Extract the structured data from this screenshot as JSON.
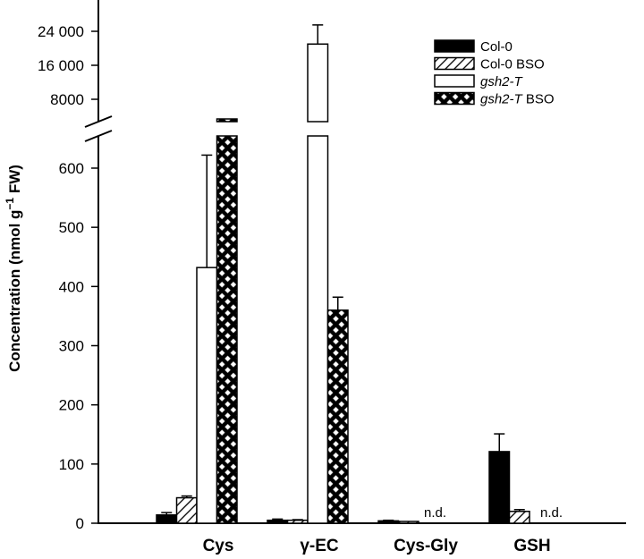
{
  "chart_data": {
    "type": "bar",
    "categories": [
      "Cys",
      "γ-EC",
      "Cys-Gly",
      "GSH"
    ],
    "ylabel_main": "Concentration (nmol g",
    "ylabel_sup": "−1",
    "ylabel_end": " FW)",
    "axis_break": true,
    "lower_ylim": [
      0,
      650
    ],
    "lower_ticks": [
      "0",
      "100",
      "200",
      "300",
      "400",
      "500",
      "600"
    ],
    "upper_ticks": [
      "8000",
      "16 000",
      "24 000"
    ],
    "series": [
      {
        "name": "Col-0",
        "name_italic": "",
        "name_rest": "Col-0",
        "fill": "solid",
        "values": [
          14,
          5,
          4,
          121
        ],
        "errors": [
          4,
          2,
          1,
          30
        ]
      },
      {
        "name": "Col-0 BSO",
        "name_italic": "",
        "name_rest": "Col-0 BSO",
        "fill": "hatch",
        "values": [
          43,
          5,
          3,
          20
        ],
        "errors": [
          3,
          1,
          0,
          3
        ]
      },
      {
        "name": "gsh2-T",
        "name_italic": "gsh2-T",
        "name_rest": "",
        "fill": "open",
        "values": [
          432,
          21000,
          null,
          null
        ],
        "errors": [
          190,
          4500,
          null,
          null
        ]
      },
      {
        "name": "gsh2-T BSO",
        "name_italic": "gsh2-T",
        "name_rest": " BSO",
        "fill": "crosshatch",
        "values": [
          1000,
          360,
          null,
          null
        ],
        "errors": [
          null,
          22,
          null,
          null
        ]
      }
    ],
    "annotations": [
      "n.d.",
      "n.d."
    ]
  }
}
